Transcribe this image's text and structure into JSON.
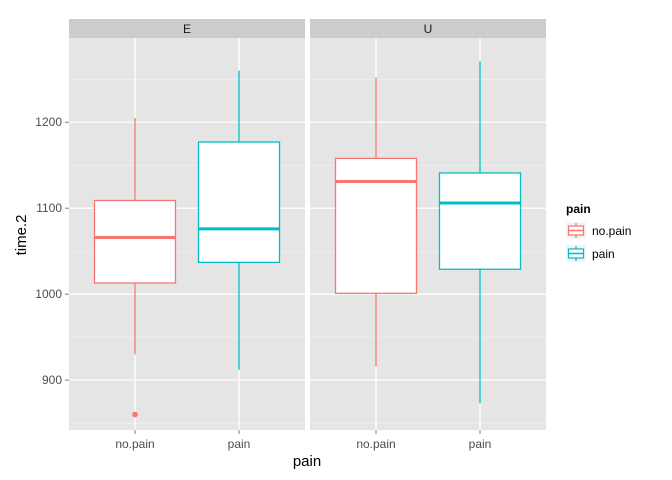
{
  "chart_data": {
    "type": "boxplot",
    "xlabel": "pain",
    "ylabel": "time.2",
    "ylim": [
      842,
      1298
    ],
    "y_ticks": [
      900,
      1000,
      1100,
      1200
    ],
    "categories": [
      "no.pain",
      "pain"
    ],
    "facets": [
      {
        "label": "E",
        "boxes": [
          {
            "category": "no.pain",
            "min": 930,
            "q1": 1013,
            "median": 1066,
            "q3": 1109,
            "max": 1205,
            "outliers": [
              860
            ]
          },
          {
            "category": "pain",
            "min": 912,
            "q1": 1037,
            "median": 1076,
            "q3": 1177,
            "max": 1260,
            "outliers": []
          }
        ]
      },
      {
        "label": "U",
        "boxes": [
          {
            "category": "no.pain",
            "min": 916,
            "q1": 1001,
            "median": 1131,
            "q3": 1158,
            "max": 1252,
            "outliers": []
          },
          {
            "category": "pain",
            "min": 873,
            "q1": 1029,
            "median": 1106,
            "q3": 1141,
            "max": 1271,
            "outliers": []
          }
        ]
      }
    ],
    "legend": {
      "title": "pain",
      "position": "right",
      "entries": [
        {
          "label": "no.pain",
          "color": "#F8766D"
        },
        {
          "label": "pain",
          "color": "#00BFC4"
        }
      ]
    },
    "grid": true,
    "colors": {
      "panel_bg": "#E5E5E5",
      "strip_bg": "#CCCCCC",
      "grid_major": "#FFFFFF",
      "grid_minor": "#F2F2F2"
    }
  }
}
